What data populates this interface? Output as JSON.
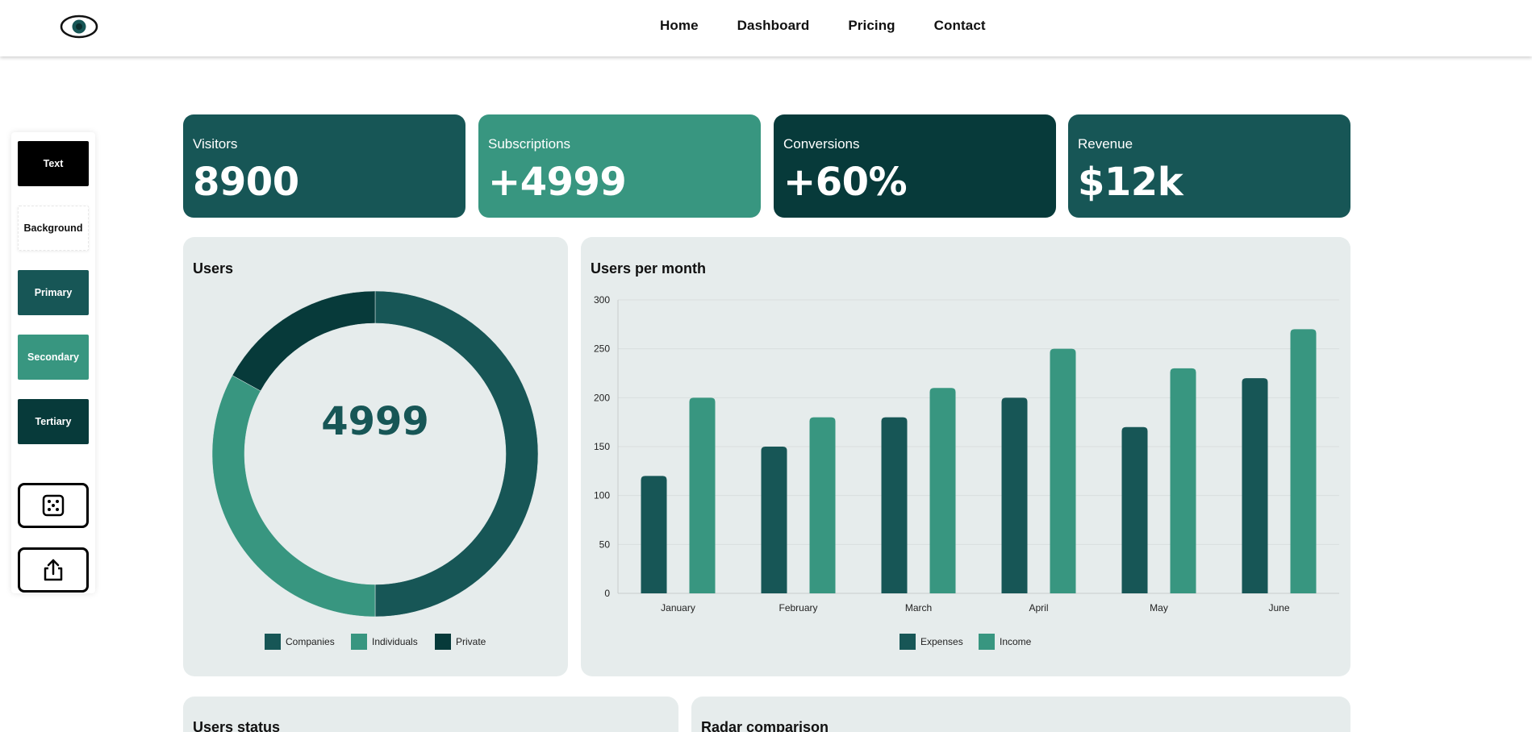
{
  "nav": {
    "logo_icon": "eye-icon",
    "links": [
      "Home",
      "Dashboard",
      "Pricing",
      "Contact"
    ]
  },
  "sidebar": {
    "swatches": [
      "Text",
      "Background",
      "Primary",
      "Secondary",
      "Tertiary"
    ],
    "buttons": [
      {
        "icon": "dice-icon"
      },
      {
        "icon": "share-icon"
      }
    ]
  },
  "colors": {
    "primary": "#175656",
    "secondary": "#389680",
    "tertiary": "#073a3a",
    "text": "#000000",
    "background": "#ffffff",
    "panel": "#e6ecec"
  },
  "stats": [
    {
      "label": "Visitors",
      "value": "8900"
    },
    {
      "label": "Subscriptions",
      "value": "+4999"
    },
    {
      "label": "Conversions",
      "value": "+60%"
    },
    {
      "label": "Revenue",
      "value": "$12k"
    }
  ],
  "panels": {
    "users_title": "Users",
    "users_center_value": "4999",
    "month_title": "Users per month",
    "status_title": "Users status",
    "radar_title": "Radar comparison"
  },
  "chart_data": [
    {
      "type": "pie",
      "variant": "doughnut",
      "title": "Users",
      "labels": [
        "Companies",
        "Individuals",
        "Private"
      ],
      "values": [
        50,
        33,
        17
      ],
      "colors": [
        "#175656",
        "#389680",
        "#073a3a"
      ],
      "legend": "bottom"
    },
    {
      "type": "bar",
      "title": "Users per month",
      "categories": [
        "January",
        "February",
        "March",
        "April",
        "May",
        "June"
      ],
      "series": [
        {
          "name": "Expenses",
          "values": [
            120,
            150,
            180,
            200,
            170,
            220
          ],
          "color": "#175656"
        },
        {
          "name": "Income",
          "values": [
            200,
            180,
            210,
            250,
            230,
            270
          ],
          "color": "#389680"
        }
      ],
      "ylim": [
        0,
        300
      ],
      "yticks": [
        0,
        50,
        100,
        150,
        200,
        250,
        300
      ],
      "grid": true,
      "legend": "bottom"
    }
  ]
}
